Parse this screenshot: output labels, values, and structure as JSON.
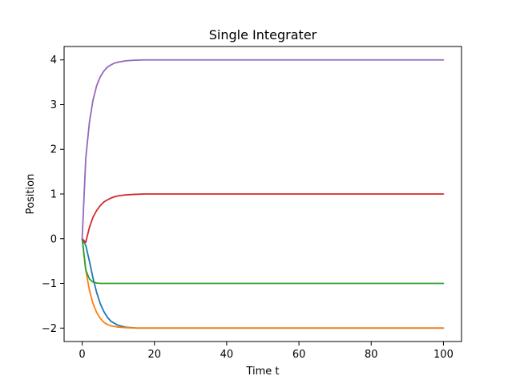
{
  "chart_data": {
    "type": "line",
    "title": "Single Integrater",
    "xlabel": "Time t",
    "ylabel": "Position",
    "xlim": [
      -5,
      105
    ],
    "ylim": [
      -2.3,
      4.3
    ],
    "xticks": [
      0,
      20,
      40,
      60,
      80,
      100
    ],
    "yticks": [
      -2,
      -1,
      0,
      1,
      2,
      3,
      4
    ],
    "ytick_labels": [
      "−2",
      "−1",
      "0",
      "1",
      "2",
      "3",
      "4"
    ],
    "xtick_labels": [
      "0",
      "20",
      "40",
      "60",
      "80",
      "100"
    ],
    "grid": false,
    "legend": "none",
    "series": [
      {
        "color": "#1f77b4",
        "x": [
          0,
          1,
          2,
          3,
          4,
          5,
          6,
          7,
          8,
          10,
          12,
          15,
          20,
          30,
          50,
          100
        ],
        "y": [
          0,
          -0.15,
          -0.5,
          -0.88,
          -1.2,
          -1.45,
          -1.63,
          -1.76,
          -1.85,
          -1.94,
          -1.98,
          -2.0,
          -2.0,
          -2.0,
          -2.0,
          -2.0
        ]
      },
      {
        "color": "#ff7f0e",
        "x": [
          0,
          1,
          2,
          3,
          4,
          5,
          6,
          7,
          8,
          10,
          12,
          15,
          20,
          30,
          50,
          100
        ],
        "y": [
          0,
          -0.7,
          -1.15,
          -1.45,
          -1.65,
          -1.78,
          -1.87,
          -1.92,
          -1.95,
          -1.98,
          -1.99,
          -2.0,
          -2.0,
          -2.0,
          -2.0,
          -2.0
        ]
      },
      {
        "color": "#2ca02c",
        "x": [
          0,
          1,
          2,
          3,
          4,
          5,
          6,
          8,
          10,
          15,
          20,
          50,
          100
        ],
        "y": [
          0,
          -0.7,
          -0.9,
          -0.97,
          -0.99,
          -1.0,
          -1.0,
          -1.0,
          -1.0,
          -1.0,
          -1.0,
          -1.0,
          -1.0
        ]
      },
      {
        "color": "#d62728",
        "x": [
          0,
          1,
          2,
          3,
          4,
          5,
          6,
          7,
          8,
          9,
          10,
          12,
          14,
          17,
          20,
          25,
          30,
          50,
          100
        ],
        "y": [
          0,
          -0.08,
          0.25,
          0.48,
          0.63,
          0.74,
          0.82,
          0.87,
          0.91,
          0.94,
          0.96,
          0.98,
          0.99,
          1.0,
          1.0,
          1.0,
          1.0,
          1.0,
          1.0
        ]
      },
      {
        "color": "#9467bd",
        "x": [
          0,
          1,
          2,
          3,
          4,
          5,
          6,
          7,
          8,
          9,
          10,
          12,
          14,
          17,
          20,
          25,
          30,
          50,
          100
        ],
        "y": [
          0,
          1.8,
          2.6,
          3.1,
          3.42,
          3.62,
          3.75,
          3.84,
          3.89,
          3.93,
          3.95,
          3.98,
          3.99,
          4.0,
          4.0,
          4.0,
          4.0,
          4.0,
          4.0
        ]
      }
    ]
  }
}
